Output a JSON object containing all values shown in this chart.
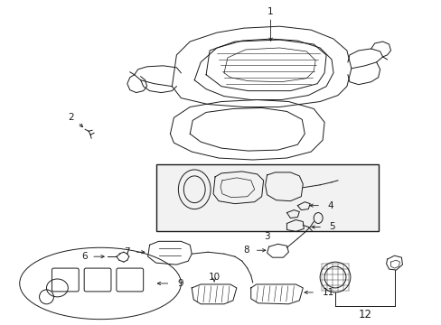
{
  "bg_color": "#ffffff",
  "line_color": "#1a1a1a",
  "fig_width": 4.89,
  "fig_height": 3.6,
  "dpi": 100,
  "label_fontsize": 7.5,
  "lw": 0.7
}
